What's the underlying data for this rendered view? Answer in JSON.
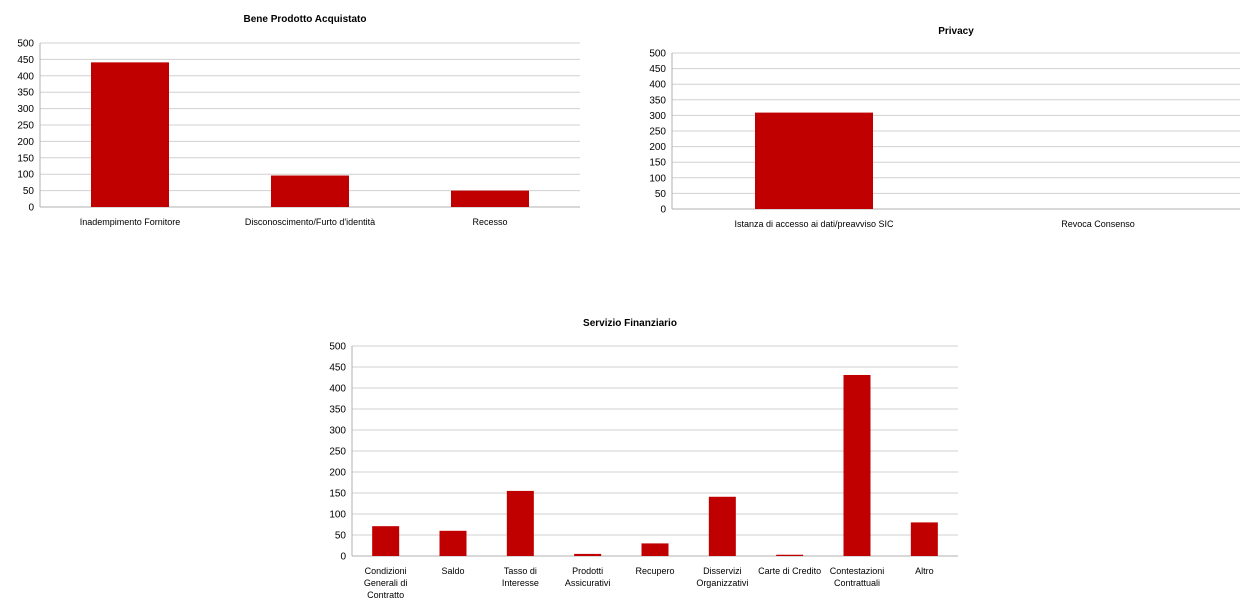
{
  "chart_data": [
    {
      "type": "bar",
      "title": "Bene Prodotto Acquistato",
      "categories": [
        "Inadempimento Fornitore",
        "Disconoscimento/Furto d'identità",
        "Recesso"
      ],
      "values": [
        441,
        96,
        50
      ],
      "ylim": [
        0,
        500
      ],
      "yticks": [
        "0",
        "50",
        "100",
        "150",
        "200",
        "250",
        "300",
        "350",
        "400",
        "450",
        "500"
      ],
      "color": "#c00000",
      "grid": true
    },
    {
      "type": "bar",
      "title": "Privacy",
      "categories": [
        "Istanza di accesso ai dati/preavviso SIC",
        "Revoca Consenso"
      ],
      "values": [
        309,
        0
      ],
      "ylim": [
        0,
        500
      ],
      "yticks": [
        "0",
        "50",
        "100",
        "150",
        "200",
        "250",
        "300",
        "350",
        "400",
        "450",
        "500"
      ],
      "color": "#c00000",
      "grid": true
    },
    {
      "type": "bar",
      "title": "Servizio Finanziario",
      "categories": [
        "Condizioni Generali di Contratto",
        "Saldo",
        "Tasso di Interesse",
        "Prodotti Assicurativi",
        "Recupero",
        "Disservizi Organizzativi",
        "Carte di Credito",
        "Contestazioni Contrattuali",
        "Altro"
      ],
      "values": [
        71,
        60,
        155,
        5,
        30,
        141,
        3,
        431,
        80
      ],
      "ylim": [
        0,
        500
      ],
      "yticks": [
        "0",
        "50",
        "100",
        "150",
        "200",
        "250",
        "300",
        "350",
        "400",
        "450",
        "500"
      ],
      "color": "#c00000",
      "grid": true
    }
  ]
}
